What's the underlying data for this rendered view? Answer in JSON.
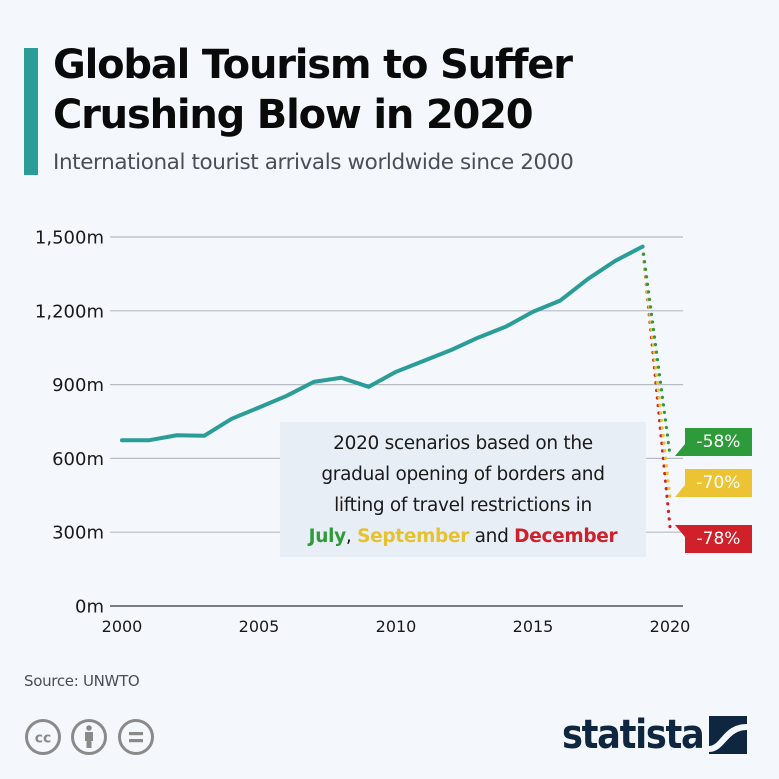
{
  "header": {
    "title": "Global Tourism to Suffer Crushing Blow in 2020",
    "subtitle": "International tourist arrivals worldwide since 2000"
  },
  "annotation": {
    "line1": "2020 scenarios based on the",
    "line2": "gradual opening of borders and",
    "line3": "lifting of travel restrictions in",
    "july": "July",
    "comma": ", ",
    "september": "September",
    "and": " and ",
    "december": "December"
  },
  "badges": [
    {
      "label": "-58%",
      "color": "#2e9b3a"
    },
    {
      "label": "-70%",
      "color": "#ecc332"
    },
    {
      "label": "-78%",
      "color": "#d0202a"
    }
  ],
  "footer": {
    "source": "Source: UNWTO",
    "license_icons": [
      "cc-icon",
      "attribution-icon",
      "no-derivatives-icon"
    ],
    "brand": "statista"
  },
  "colors": {
    "accent": "#2a9d98",
    "line": "#2a9d98",
    "july": "#2e9b3a",
    "september": "#ecc332",
    "december": "#d0202a",
    "brand": "#0f2640"
  },
  "chart_data": {
    "type": "line",
    "title": "Global Tourism to Suffer Crushing Blow in 2020",
    "subtitle": "International tourist arrivals worldwide since 2000",
    "xlabel": "",
    "ylabel": "",
    "x": [
      2000,
      2001,
      2002,
      2003,
      2004,
      2005,
      2006,
      2007,
      2008,
      2009,
      2010,
      2011,
      2012,
      2013,
      2014,
      2015,
      2016,
      2017,
      2018,
      2019
    ],
    "series": [
      {
        "name": "International tourist arrivals (millions)",
        "values": [
          674,
          674,
          694,
          692,
          761,
          807,
          854,
          911,
          928,
          891,
          952,
          996,
          1040,
          1091,
          1135,
          1196,
          1242,
          1329,
          1403,
          1461
        ]
      }
    ],
    "scenarios": [
      {
        "name": "July",
        "change": "-58%",
        "from": [
          2019,
          1461
        ],
        "to": [
          2020,
          614
        ],
        "color": "#2e9b3a"
      },
      {
        "name": "September",
        "change": "-70%",
        "from": [
          2019,
          1461
        ],
        "to": [
          2020,
          438
        ],
        "color": "#ecc332"
      },
      {
        "name": "December",
        "change": "-78%",
        "from": [
          2019,
          1461
        ],
        "to": [
          2020,
          321
        ],
        "color": "#d0202a"
      }
    ],
    "yticks": [
      0,
      300,
      600,
      900,
      1200,
      1500
    ],
    "ytick_labels": [
      "0m",
      "300m",
      "600m",
      "900m",
      "1,200m",
      "1,500m"
    ],
    "xticks": [
      2000,
      2005,
      2010,
      2015,
      2020
    ],
    "xtick_labels": [
      "2000",
      "2005",
      "2010",
      "2015",
      "2020"
    ],
    "ylim": [
      0,
      1500
    ],
    "xlim": [
      2000,
      2020
    ],
    "grid": true,
    "legend": "none"
  }
}
